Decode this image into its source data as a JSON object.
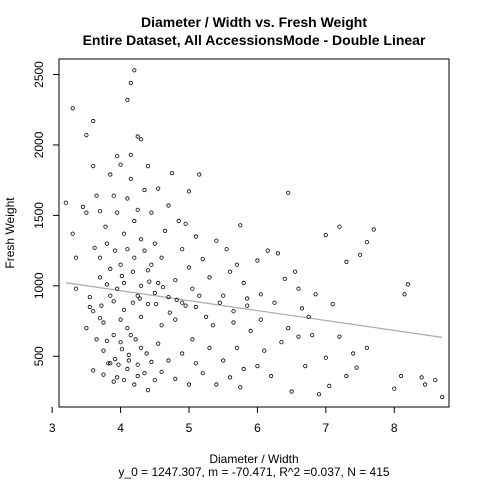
{
  "chart_data": {
    "type": "scatter",
    "title_lines": [
      "Diameter / Width vs. Fresh Weight",
      "Entire Dataset, All AccessionsMode - Double Linear"
    ],
    "xlabel": "Diameter / Width",
    "ylabel": "Fresh Weight",
    "caption": "y_0 = 1247.307, m = -70.471, R^2 =0.037, N = 415",
    "xlim": [
      3.1,
      8.8
    ],
    "ylim": [
      140,
      2610
    ],
    "x_ticks": [
      3,
      4,
      5,
      6,
      7,
      8
    ],
    "y_ticks": [
      500,
      1000,
      1500,
      2000,
      2500
    ],
    "grid": false,
    "regression": {
      "intercept": 1247.307,
      "slope": -70.471,
      "x_range": [
        3.2,
        8.7
      ],
      "color": "#aaaaaa"
    },
    "point_color": "#000000",
    "points": [
      [
        3.2,
        1590
      ],
      [
        3.3,
        2260
      ],
      [
        3.3,
        1370
      ],
      [
        3.35,
        1200
      ],
      [
        3.45,
        1560
      ],
      [
        3.5,
        2070
      ],
      [
        3.5,
        1520
      ],
      [
        3.5,
        700
      ],
      [
        3.55,
        920
      ],
      [
        3.6,
        2170
      ],
      [
        3.6,
        1850
      ],
      [
        3.62,
        1270
      ],
      [
        3.65,
        1640
      ],
      [
        3.6,
        820
      ],
      [
        3.65,
        620
      ],
      [
        3.7,
        1200
      ],
      [
        3.7,
        1530
      ],
      [
        3.7,
        1060
      ],
      [
        3.72,
        860
      ],
      [
        3.75,
        740
      ],
      [
        3.75,
        540
      ],
      [
        3.78,
        1420
      ],
      [
        3.8,
        1300
      ],
      [
        3.8,
        1010
      ],
      [
        3.82,
        450
      ],
      [
        3.85,
        1790
      ],
      [
        3.85,
        1120
      ],
      [
        3.9,
        1640
      ],
      [
        3.9,
        890
      ],
      [
        3.9,
        650
      ],
      [
        3.92,
        1250
      ],
      [
        3.95,
        1920
      ],
      [
        3.95,
        1520
      ],
      [
        3.95,
        980
      ],
      [
        3.97,
        440
      ],
      [
        4.0,
        1860
      ],
      [
        4.0,
        1150
      ],
      [
        4.0,
        760
      ],
      [
        4.02,
        550
      ],
      [
        4.05,
        1370
      ],
      [
        4.05,
        1020
      ],
      [
        4.05,
        830
      ],
      [
        4.1,
        2320
      ],
      [
        4.1,
        1620
      ],
      [
        4.1,
        1260
      ],
      [
        4.1,
        700
      ],
      [
        4.12,
        470
      ],
      [
        4.15,
        2440
      ],
      [
        4.15,
        1930
      ],
      [
        4.15,
        1760
      ],
      [
        4.18,
        1100
      ],
      [
        4.18,
        880
      ],
      [
        4.2,
        2530
      ],
      [
        4.2,
        1460
      ],
      [
        4.2,
        1200
      ],
      [
        4.22,
        620
      ],
      [
        4.25,
        2060
      ],
      [
        4.25,
        1540
      ],
      [
        4.25,
        930
      ],
      [
        4.25,
        360
      ],
      [
        4.3,
        2040
      ],
      [
        4.3,
        1330
      ],
      [
        4.3,
        1000
      ],
      [
        4.3,
        780
      ],
      [
        4.35,
        1680
      ],
      [
        4.35,
        1250
      ],
      [
        4.38,
        520
      ],
      [
        4.4,
        1850
      ],
      [
        4.4,
        1110
      ],
      [
        4.4,
        870
      ],
      [
        4.45,
        1520
      ],
      [
        4.45,
        1150
      ],
      [
        4.5,
        1300
      ],
      [
        4.5,
        950
      ],
      [
        4.55,
        1690
      ],
      [
        4.55,
        1020
      ],
      [
        4.6,
        1200
      ],
      [
        4.6,
        720
      ],
      [
        4.65,
        1390
      ],
      [
        4.7,
        1570
      ],
      [
        4.7,
        920
      ],
      [
        4.75,
        1800
      ],
      [
        4.8,
        1040
      ],
      [
        4.8,
        760
      ],
      [
        4.85,
        1460
      ],
      [
        4.9,
        1260
      ],
      [
        4.9,
        880
      ],
      [
        4.95,
        1440
      ],
      [
        5.0,
        1670
      ],
      [
        5.0,
        1130
      ],
      [
        5.05,
        980
      ],
      [
        5.1,
        1350
      ],
      [
        5.1,
        850
      ],
      [
        5.15,
        1790
      ],
      [
        5.2,
        1190
      ],
      [
        5.3,
        1060
      ],
      [
        5.35,
        720
      ],
      [
        5.4,
        1320
      ],
      [
        5.5,
        930
      ],
      [
        5.55,
        1260
      ],
      [
        5.6,
        1100
      ],
      [
        5.65,
        820
      ],
      [
        5.7,
        1150
      ],
      [
        5.75,
        1430
      ],
      [
        5.8,
        1020
      ],
      [
        5.85,
        860
      ],
      [
        6.0,
        1180
      ],
      [
        6.05,
        940
      ],
      [
        6.15,
        1250
      ],
      [
        6.3,
        1230
      ],
      [
        6.4,
        1050
      ],
      [
        6.45,
        1660
      ],
      [
        6.55,
        1100
      ],
      [
        6.6,
        980
      ],
      [
        6.75,
        780
      ],
      [
        6.85,
        940
      ],
      [
        7.0,
        1360
      ],
      [
        7.1,
        870
      ],
      [
        7.2,
        1420
      ],
      [
        7.3,
        1170
      ],
      [
        7.4,
        520
      ],
      [
        7.5,
        1220
      ],
      [
        7.6,
        1310
      ],
      [
        7.7,
        1400
      ],
      [
        3.35,
        980
      ],
      [
        3.6,
        400
      ],
      [
        3.75,
        370
      ],
      [
        3.8,
        610
      ],
      [
        3.85,
        450
      ],
      [
        3.9,
        320
      ],
      [
        3.92,
        480
      ],
      [
        3.95,
        350
      ],
      [
        4.0,
        600
      ],
      [
        4.05,
        330
      ],
      [
        4.1,
        410
      ],
      [
        4.12,
        510
      ],
      [
        4.15,
        650
      ],
      [
        4.2,
        300
      ],
      [
        4.25,
        440
      ],
      [
        4.3,
        560
      ],
      [
        4.35,
        380
      ],
      [
        4.4,
        260
      ],
      [
        4.45,
        460
      ],
      [
        4.5,
        330
      ],
      [
        4.55,
        590
      ],
      [
        4.6,
        390
      ],
      [
        4.7,
        470
      ],
      [
        4.8,
        340
      ],
      [
        4.9,
        520
      ],
      [
        5.0,
        300
      ],
      [
        5.05,
        620
      ],
      [
        5.1,
        450
      ],
      [
        5.2,
        380
      ],
      [
        5.3,
        560
      ],
      [
        5.4,
        300
      ],
      [
        5.5,
        470
      ],
      [
        5.6,
        350
      ],
      [
        5.7,
        560
      ],
      [
        5.75,
        280
      ],
      [
        5.8,
        410
      ],
      [
        5.9,
        680
      ],
      [
        6.0,
        430
      ],
      [
        6.1,
        540
      ],
      [
        6.2,
        360
      ],
      [
        6.35,
        600
      ],
      [
        6.5,
        250
      ],
      [
        6.6,
        640
      ],
      [
        6.7,
        430
      ],
      [
        6.9,
        230
      ],
      [
        7.0,
        490
      ],
      [
        7.05,
        290
      ],
      [
        7.2,
        640
      ],
      [
        7.3,
        360
      ],
      [
        7.45,
        420
      ],
      [
        7.6,
        560
      ],
      [
        8.0,
        270
      ],
      [
        8.1,
        360
      ],
      [
        8.2,
        1010
      ],
      [
        8.4,
        350
      ],
      [
        8.45,
        300
      ],
      [
        8.6,
        330
      ],
      [
        8.7,
        210
      ],
      [
        8.15,
        940
      ],
      [
        3.55,
        850
      ],
      [
        3.7,
        770
      ],
      [
        3.85,
        930
      ],
      [
        4.02,
        1070
      ],
      [
        4.28,
        910
      ],
      [
        4.42,
        1030
      ],
      [
        4.52,
        870
      ],
      [
        4.62,
        990
      ],
      [
        4.72,
        810
      ],
      [
        4.82,
        900
      ],
      [
        4.95,
        860
      ],
      [
        5.15,
        930
      ],
      [
        5.25,
        780
      ],
      [
        5.45,
        880
      ],
      [
        5.65,
        740
      ],
      [
        5.85,
        910
      ],
      [
        6.05,
        760
      ],
      [
        6.25,
        880
      ],
      [
        6.45,
        700
      ],
      [
        6.65,
        840
      ],
      [
        6.8,
        650
      ]
    ]
  }
}
